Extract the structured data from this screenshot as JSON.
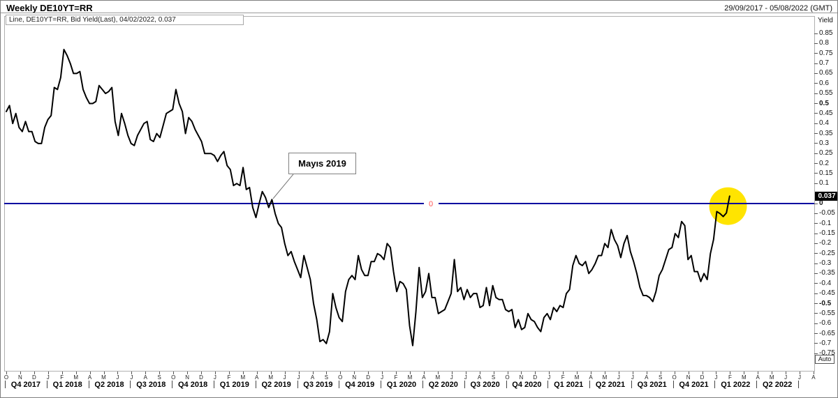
{
  "header": {
    "title": "Weekly DE10YT=RR",
    "date_range": "29/09/2017 - 05/08/2022 (GMT)"
  },
  "legend": {
    "text": "Line, DE10YT=RR, Bid Yield(Last), 04/02/2022, 0.037"
  },
  "annotation": {
    "text": "Mayıs 2019"
  },
  "axis": {
    "unit_label": "Yield",
    "auto_label": "Auto"
  },
  "colors": {
    "series_line": "#000000",
    "zero_line": "#0000a0",
    "zero_label": "#ff5252",
    "highlight_circle": "#ffe400",
    "last_value_bg": "#000000",
    "last_value_fg": "#ffffff"
  },
  "chart_data": {
    "type": "line",
    "title": "Weekly DE10YT=RR",
    "instrument": "DE10YT=RR",
    "field": "Bid Yield(Last)",
    "interval": "Weekly",
    "x_range": [
      "29/09/2017",
      "05/08/2022"
    ],
    "ylabel": "Yield",
    "ylim": [
      -0.75,
      0.85
    ],
    "y_tick_step": 0.05,
    "grid": false,
    "last_point": {
      "date": "04/02/2022",
      "value": 0.037
    },
    "last_value_label": "0.037",
    "zero_line_value": 0,
    "zero_line_label": "0",
    "y_axis": {
      "tick_labels": [
        "0.85",
        "0.8",
        "0.75",
        "0.7",
        "0.65",
        "0.6",
        "0.55",
        "0.5",
        "0.45",
        "0.4",
        "0.35",
        "0.3",
        "0.25",
        "0.2",
        "0.15",
        "0.1",
        "0",
        "-0.05",
        "-0.1",
        "-0.15",
        "-0.2",
        "-0.25",
        "-0.3",
        "-0.35",
        "-0.4",
        "-0.45",
        "-0.5",
        "-0.55",
        "-0.6",
        "-0.65",
        "-0.7",
        "-0.75"
      ],
      "bold_ticks": [
        "0.5",
        "0",
        "-0.5"
      ]
    },
    "x_axis": {
      "month_labels": [
        "O",
        "N",
        "D",
        "J",
        "F",
        "M",
        "A",
        "M",
        "J",
        "J",
        "A",
        "S",
        "O",
        "N",
        "D",
        "J",
        "F",
        "M",
        "A",
        "M",
        "J",
        "J",
        "A",
        "S",
        "O",
        "N",
        "D",
        "J",
        "F",
        "M",
        "A",
        "M",
        "J",
        "J",
        "A",
        "S",
        "O",
        "N",
        "D",
        "J",
        "F",
        "M",
        "A",
        "M",
        "J",
        "J",
        "A",
        "S",
        "O",
        "N",
        "D",
        "J",
        "F",
        "M",
        "A",
        "M",
        "J",
        "J",
        "A"
      ],
      "quarter_labels": [
        "Q4 2017",
        "Q1 2018",
        "Q2 2018",
        "Q3 2018",
        "Q4 2018",
        "Q1 2019",
        "Q2 2019",
        "Q3 2019",
        "Q4 2019",
        "Q1 2020",
        "Q2 2020",
        "Q3 2020",
        "Q4 2020",
        "Q1 2021",
        "Q2 2021",
        "Q3 2021",
        "Q4 2021",
        "Q1 2022",
        "Q2 2022"
      ]
    },
    "highlight_circle": {
      "week": 225.5,
      "value": -0.013,
      "radius_px": 27
    },
    "series": [
      {
        "name": "DE10YT=RR Bid Yield(Last)",
        "points_week_value": [
          [
            0,
            0.46
          ],
          [
            1,
            0.49
          ],
          [
            2,
            0.4
          ],
          [
            3,
            0.45
          ],
          [
            4,
            0.38
          ],
          [
            5,
            0.36
          ],
          [
            6,
            0.41
          ],
          [
            7,
            0.36
          ],
          [
            8,
            0.36
          ],
          [
            9,
            0.31
          ],
          [
            10,
            0.3
          ],
          [
            11,
            0.3
          ],
          [
            12,
            0.38
          ],
          [
            13,
            0.42
          ],
          [
            14,
            0.44
          ],
          [
            15,
            0.58
          ],
          [
            16,
            0.57
          ],
          [
            17,
            0.63
          ],
          [
            18,
            0.77
          ],
          [
            19,
            0.74
          ],
          [
            20,
            0.7
          ],
          [
            21,
            0.65
          ],
          [
            22,
            0.65
          ],
          [
            23,
            0.66
          ],
          [
            24,
            0.57
          ],
          [
            25,
            0.53
          ],
          [
            26,
            0.5
          ],
          [
            27,
            0.5
          ],
          [
            28,
            0.51
          ],
          [
            29,
            0.59
          ],
          [
            30,
            0.57
          ],
          [
            31,
            0.55
          ],
          [
            32,
            0.56
          ],
          [
            33,
            0.58
          ],
          [
            34,
            0.41
          ],
          [
            35,
            0.34
          ],
          [
            36,
            0.45
          ],
          [
            37,
            0.4
          ],
          [
            38,
            0.34
          ],
          [
            39,
            0.3
          ],
          [
            40,
            0.29
          ],
          [
            41,
            0.34
          ],
          [
            42,
            0.37
          ],
          [
            43,
            0.4
          ],
          [
            44,
            0.41
          ],
          [
            45,
            0.32
          ],
          [
            46,
            0.31
          ],
          [
            47,
            0.35
          ],
          [
            48,
            0.33
          ],
          [
            49,
            0.39
          ],
          [
            50,
            0.45
          ],
          [
            51,
            0.46
          ],
          [
            52,
            0.47
          ],
          [
            53,
            0.57
          ],
          [
            54,
            0.5
          ],
          [
            55,
            0.46
          ],
          [
            56,
            0.35
          ],
          [
            57,
            0.43
          ],
          [
            58,
            0.41
          ],
          [
            59,
            0.37
          ],
          [
            60,
            0.34
          ],
          [
            61,
            0.31
          ],
          [
            62,
            0.25
          ],
          [
            63,
            0.25
          ],
          [
            64,
            0.25
          ],
          [
            65,
            0.24
          ],
          [
            66,
            0.21
          ],
          [
            67,
            0.24
          ],
          [
            68,
            0.26
          ],
          [
            69,
            0.19
          ],
          [
            70,
            0.17
          ],
          [
            71,
            0.09
          ],
          [
            72,
            0.1
          ],
          [
            73,
            0.09
          ],
          [
            74,
            0.18
          ],
          [
            75,
            0.07
          ],
          [
            76,
            0.08
          ],
          [
            77,
            -0.02
          ],
          [
            78,
            -0.07
          ],
          [
            79,
            0.0
          ],
          [
            80,
            0.06
          ],
          [
            81,
            0.03
          ],
          [
            82,
            -0.02
          ],
          [
            83,
            0.02
          ],
          [
            84,
            -0.05
          ],
          [
            85,
            -0.1
          ],
          [
            86,
            -0.12
          ],
          [
            87,
            -0.2
          ],
          [
            88,
            -0.26
          ],
          [
            89,
            -0.24
          ],
          [
            90,
            -0.29
          ],
          [
            91,
            -0.33
          ],
          [
            92,
            -0.37
          ],
          [
            93,
            -0.26
          ],
          [
            94,
            -0.32
          ],
          [
            95,
            -0.38
          ],
          [
            96,
            -0.5
          ],
          [
            97,
            -0.58
          ],
          [
            98,
            -0.69
          ],
          [
            99,
            -0.68
          ],
          [
            100,
            -0.7
          ],
          [
            101,
            -0.64
          ],
          [
            102,
            -0.45
          ],
          [
            103,
            -0.52
          ],
          [
            104,
            -0.57
          ],
          [
            105,
            -0.59
          ],
          [
            106,
            -0.44
          ],
          [
            107,
            -0.38
          ],
          [
            108,
            -0.36
          ],
          [
            109,
            -0.38
          ],
          [
            110,
            -0.26
          ],
          [
            111,
            -0.33
          ],
          [
            112,
            -0.36
          ],
          [
            113,
            -0.36
          ],
          [
            114,
            -0.29
          ],
          [
            115,
            -0.29
          ],
          [
            116,
            -0.25
          ],
          [
            117,
            -0.26
          ],
          [
            118,
            -0.28
          ],
          [
            119,
            -0.2
          ],
          [
            120,
            -0.22
          ],
          [
            121,
            -0.34
          ],
          [
            122,
            -0.44
          ],
          [
            123,
            -0.39
          ],
          [
            124,
            -0.4
          ],
          [
            125,
            -0.43
          ],
          [
            126,
            -0.61
          ],
          [
            127,
            -0.71
          ],
          [
            128,
            -0.54
          ],
          [
            129,
            -0.32
          ],
          [
            130,
            -0.47
          ],
          [
            131,
            -0.44
          ],
          [
            132,
            -0.35
          ],
          [
            133,
            -0.47
          ],
          [
            134,
            -0.47
          ],
          [
            135,
            -0.55
          ],
          [
            136,
            -0.54
          ],
          [
            137,
            -0.53
          ],
          [
            138,
            -0.49
          ],
          [
            139,
            -0.45
          ],
          [
            140,
            -0.28
          ],
          [
            141,
            -0.44
          ],
          [
            142,
            -0.42
          ],
          [
            143,
            -0.48
          ],
          [
            144,
            -0.43
          ],
          [
            145,
            -0.47
          ],
          [
            146,
            -0.45
          ],
          [
            147,
            -0.45
          ],
          [
            148,
            -0.52
          ],
          [
            149,
            -0.51
          ],
          [
            150,
            -0.42
          ],
          [
            151,
            -0.51
          ],
          [
            152,
            -0.41
          ],
          [
            153,
            -0.47
          ],
          [
            154,
            -0.48
          ],
          [
            155,
            -0.48
          ],
          [
            156,
            -0.53
          ],
          [
            157,
            -0.54
          ],
          [
            158,
            -0.53
          ],
          [
            159,
            -0.62
          ],
          [
            160,
            -0.58
          ],
          [
            161,
            -0.63
          ],
          [
            162,
            -0.62
          ],
          [
            163,
            -0.55
          ],
          [
            164,
            -0.58
          ],
          [
            165,
            -0.59
          ],
          [
            166,
            -0.62
          ],
          [
            167,
            -0.64
          ],
          [
            168,
            -0.57
          ],
          [
            169,
            -0.55
          ],
          [
            170,
            -0.58
          ],
          [
            171,
            -0.52
          ],
          [
            172,
            -0.54
          ],
          [
            173,
            -0.51
          ],
          [
            174,
            -0.52
          ],
          [
            175,
            -0.45
          ],
          [
            176,
            -0.43
          ],
          [
            177,
            -0.31
          ],
          [
            178,
            -0.26
          ],
          [
            179,
            -0.3
          ],
          [
            180,
            -0.31
          ],
          [
            181,
            -0.29
          ],
          [
            182,
            -0.35
          ],
          [
            183,
            -0.33
          ],
          [
            184,
            -0.3
          ],
          [
            185,
            -0.26
          ],
          [
            186,
            -0.26
          ],
          [
            187,
            -0.2
          ],
          [
            188,
            -0.22
          ],
          [
            189,
            -0.13
          ],
          [
            190,
            -0.18
          ],
          [
            191,
            -0.21
          ],
          [
            192,
            -0.27
          ],
          [
            193,
            -0.2
          ],
          [
            194,
            -0.16
          ],
          [
            195,
            -0.24
          ],
          [
            196,
            -0.29
          ],
          [
            197,
            -0.35
          ],
          [
            198,
            -0.42
          ],
          [
            199,
            -0.46
          ],
          [
            200,
            -0.46
          ],
          [
            201,
            -0.47
          ],
          [
            202,
            -0.49
          ],
          [
            203,
            -0.44
          ],
          [
            204,
            -0.36
          ],
          [
            205,
            -0.33
          ],
          [
            206,
            -0.28
          ],
          [
            207,
            -0.23
          ],
          [
            208,
            -0.22
          ],
          [
            209,
            -0.15
          ],
          [
            210,
            -0.17
          ],
          [
            211,
            -0.09
          ],
          [
            212,
            -0.11
          ],
          [
            213,
            -0.28
          ],
          [
            214,
            -0.26
          ],
          [
            215,
            -0.34
          ],
          [
            216,
            -0.34
          ],
          [
            217,
            -0.39
          ],
          [
            218,
            -0.35
          ],
          [
            219,
            -0.38
          ],
          [
            220,
            -0.25
          ],
          [
            221,
            -0.18
          ],
          [
            222,
            -0.04
          ],
          [
            223,
            -0.05
          ],
          [
            224,
            -0.065
          ],
          [
            225,
            -0.047
          ],
          [
            226,
            0.037
          ]
        ]
      }
    ]
  }
}
